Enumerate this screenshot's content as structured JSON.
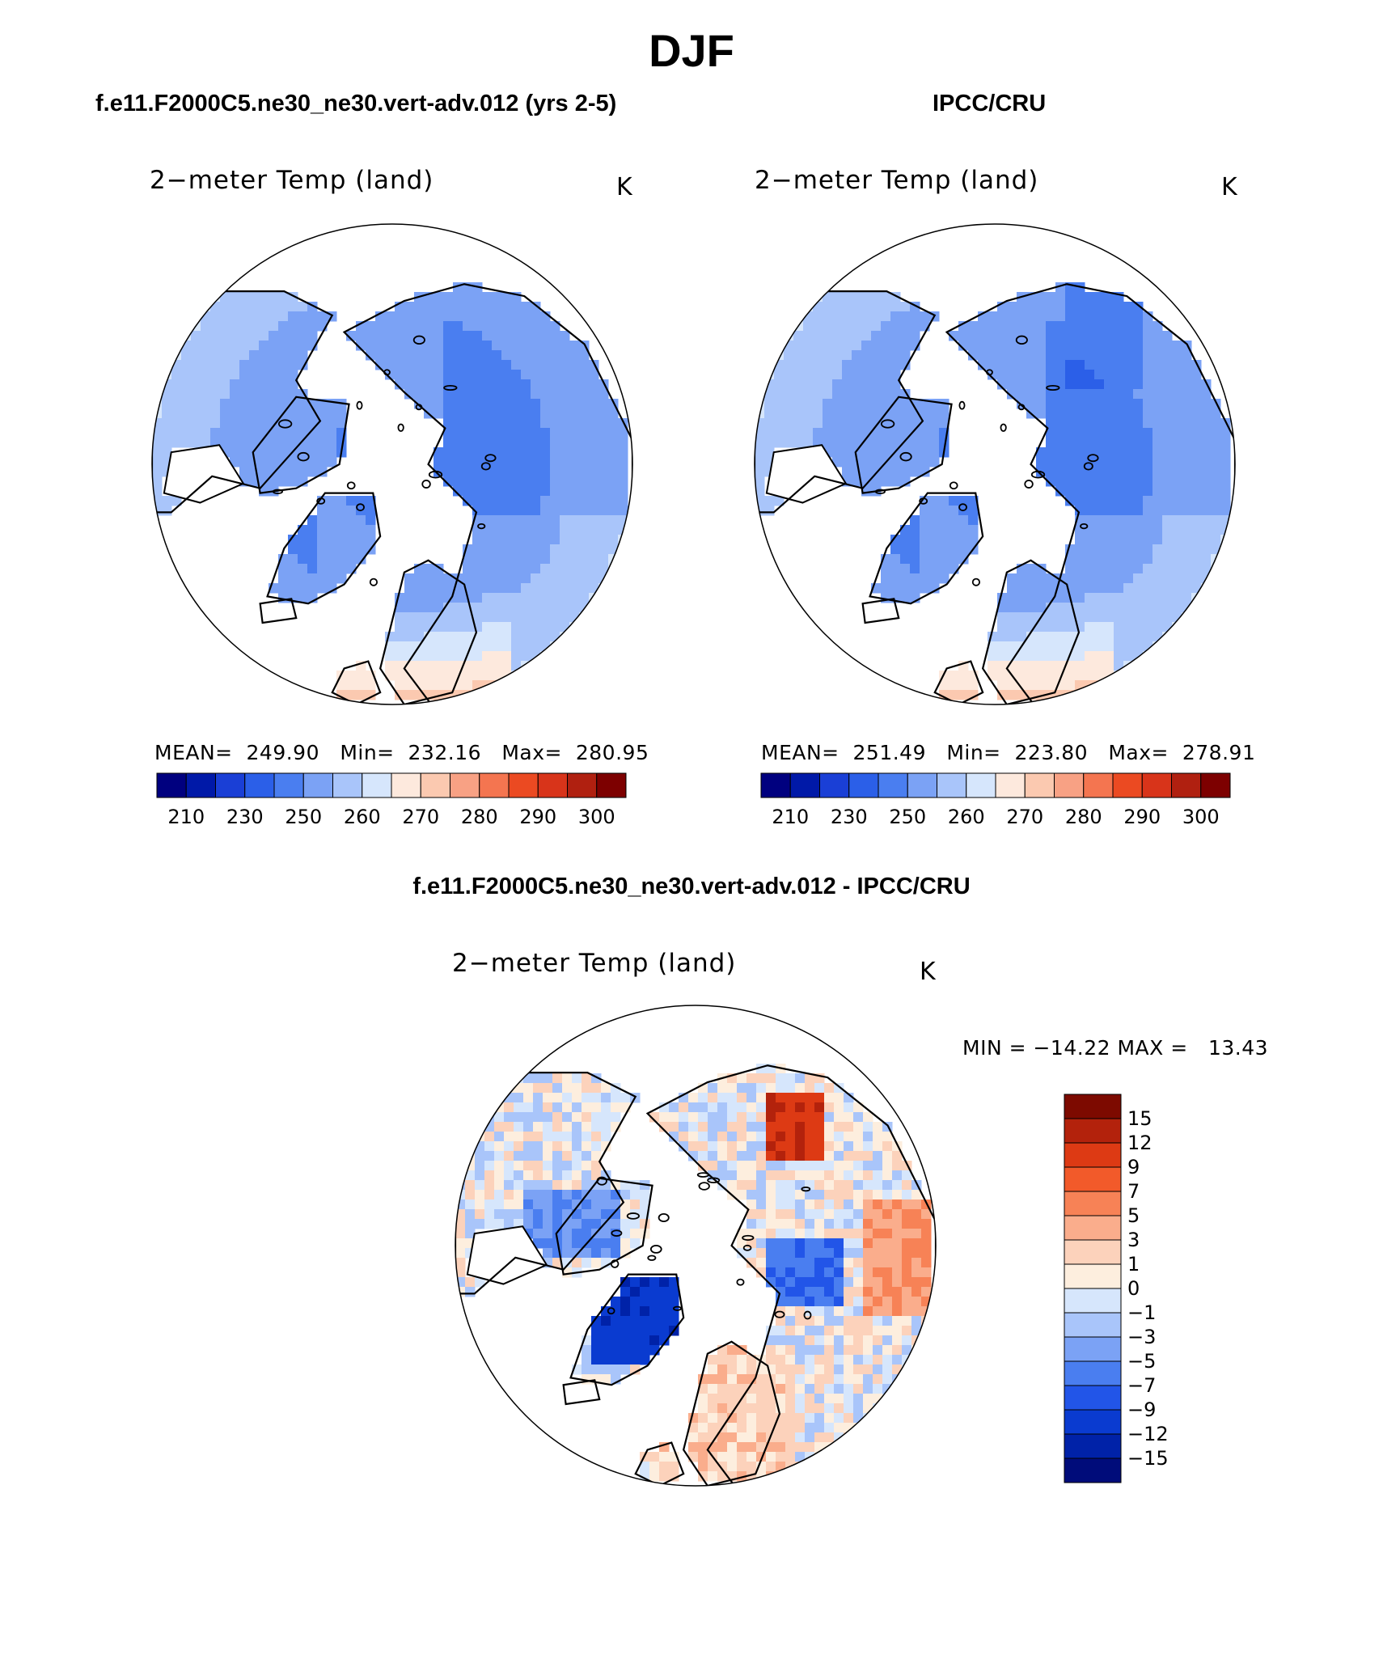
{
  "header": {
    "title": "DJF",
    "left_case": "f.e11.F2000C5.ne30_ne30.vert-adv.012 (yrs 2-5)",
    "right_case": "IPCC/CRU",
    "diff_case": "f.e11.F2000C5.ne30_ne30.vert-adv.012 - IPCC/CRU"
  },
  "colors": {
    "abs_palette": [
      "#00007f",
      "#0019a8",
      "#1a3fd6",
      "#2b5fe8",
      "#4a7ef0",
      "#7ba2f5",
      "#a9c5fa",
      "#d6e6fc",
      "#fde9dd",
      "#fbc9b0",
      "#f8a184",
      "#f47550",
      "#eb4a22",
      "#d8341a",
      "#b02010",
      "#7d0000"
    ],
    "diff_palette": [
      "#000c7a",
      "#0022a8",
      "#0a3bd0",
      "#2255e8",
      "#4a7ef0",
      "#7ba2f5",
      "#a9c5fa",
      "#d6e6fc",
      "#fdeede",
      "#fcd2bb",
      "#faad8c",
      "#f78256",
      "#f25a2a",
      "#dd3a14",
      "#b3220c",
      "#7d0a00"
    ],
    "land_mask": "#ffffff",
    "coast": "#000000"
  },
  "chart_data": [
    {
      "type": "heatmap",
      "id": "model",
      "title": "2−meter Temp (land)",
      "units": "K",
      "projection": "north-polar-stereographic",
      "stats": {
        "mean": "249.90",
        "min": "232.16",
        "max": "280.95"
      },
      "stats_text": "MEAN=  249.90   Min=  232.16   Max=  280.95",
      "colorbar_ticks": [
        "210",
        "230",
        "250",
        "260",
        "270",
        "280",
        "290",
        "300"
      ],
      "orientation": "horizontal"
    },
    {
      "type": "heatmap",
      "id": "obs",
      "title": "2−meter Temp (land)",
      "units": "K",
      "projection": "north-polar-stereographic",
      "stats": {
        "mean": "251.49",
        "min": "223.80",
        "max": "278.91"
      },
      "stats_text": "MEAN=  251.49   Min=  223.80   Max=  278.91",
      "colorbar_ticks": [
        "210",
        "230",
        "250",
        "260",
        "270",
        "280",
        "290",
        "300"
      ],
      "orientation": "horizontal"
    },
    {
      "type": "heatmap",
      "id": "diff",
      "title": "2−meter Temp (land)",
      "units": "K",
      "projection": "north-polar-stereographic",
      "stats": {
        "min": "−14.22",
        "max": "13.43"
      },
      "stats_text": "MIN = −14.22 MAX =   13.43",
      "colorbar_ticks": [
        "15",
        "12",
        "9",
        "7",
        "5",
        "3",
        "1",
        "0",
        "−1",
        "−3",
        "−5",
        "−7",
        "−9",
        "−12",
        "−15"
      ],
      "orientation": "vertical"
    }
  ]
}
